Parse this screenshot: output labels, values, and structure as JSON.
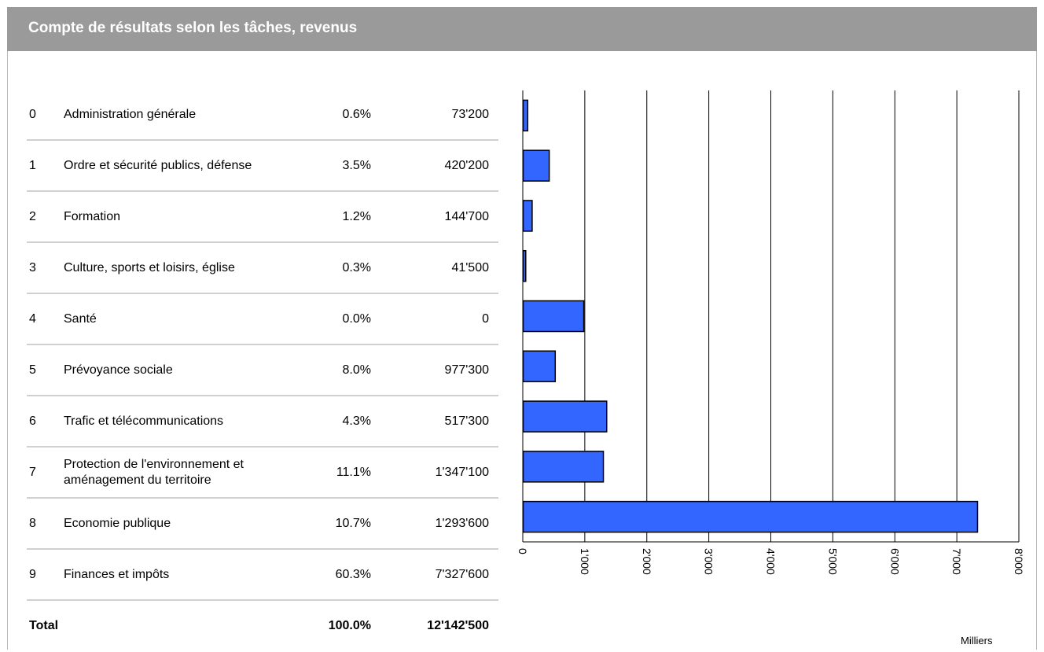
{
  "header": {
    "title": "Compte de résultats selon les tâches, revenus"
  },
  "table": {
    "rows": [
      {
        "code": "0",
        "label": "Administration générale",
        "pct": "0.6%",
        "value": "73'200"
      },
      {
        "code": "1",
        "label": "Ordre et sécurité publics, défense",
        "pct": "3.5%",
        "value": "420'200"
      },
      {
        "code": "2",
        "label": "Formation",
        "pct": "1.2%",
        "value": "144'700"
      },
      {
        "code": "3",
        "label": "Culture, sports et loisirs, église",
        "pct": "0.3%",
        "value": "41'500"
      },
      {
        "code": "4",
        "label": "Santé",
        "pct": "0.0%",
        "value": "0"
      },
      {
        "code": "5",
        "label": "Prévoyance sociale",
        "pct": "8.0%",
        "value": "977'300"
      },
      {
        "code": "6",
        "label": "Trafic et télécommunications",
        "pct": "4.3%",
        "value": "517'300"
      },
      {
        "code": "7",
        "label": "Protection de l'environnement et aménagement du territoire",
        "pct": "11.1%",
        "value": "1'347'100"
      },
      {
        "code": "8",
        "label": "Economie publique",
        "pct": "10.7%",
        "value": "1'293'600"
      },
      {
        "code": "9",
        "label": "Finances et impôts",
        "pct": "60.3%",
        "value": "7'327'600"
      }
    ],
    "total": {
      "label": "Total",
      "pct": "100.0%",
      "value": "12'142'500"
    }
  },
  "chart_data": {
    "type": "bar",
    "orientation": "horizontal",
    "values": [
      73.2,
      420.2,
      144.7,
      41.5,
      977.3,
      517.3,
      1347.1,
      1293.6,
      7327.6
    ],
    "xlim": [
      0,
      8000
    ],
    "xticks": [
      0,
      1000,
      2000,
      3000,
      4000,
      5000,
      6000,
      7000,
      8000
    ],
    "xtick_labels": [
      "0",
      "1'000",
      "2'000",
      "3'000",
      "4'000",
      "5'000",
      "6'000",
      "7'000",
      "8'000"
    ],
    "xlabel": "Milliers",
    "grid": true,
    "bar_color": "#3366ff"
  }
}
